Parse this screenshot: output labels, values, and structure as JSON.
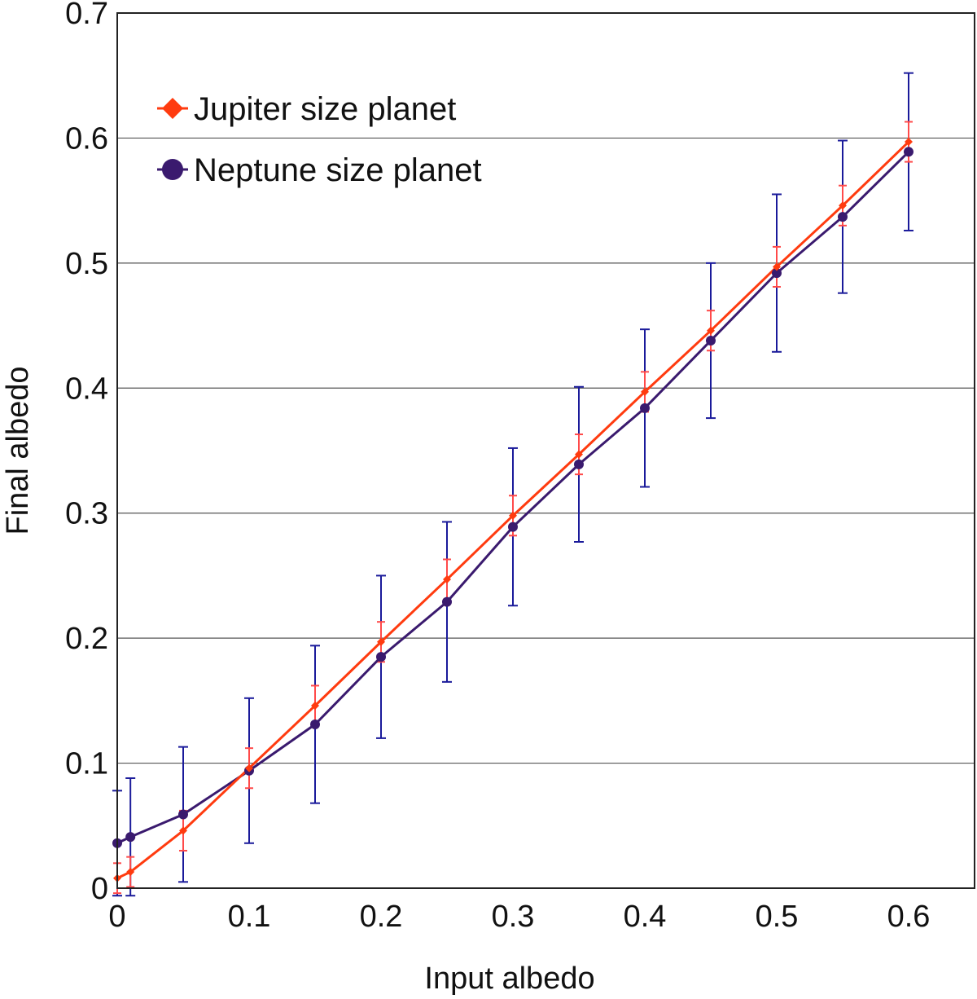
{
  "chart_data": {
    "type": "line",
    "xlabel": "Input albedo",
    "ylabel": "Final albedo",
    "xlim": [
      0,
      0.65
    ],
    "ylim": [
      0,
      0.7
    ],
    "xticks": [
      0,
      0.1,
      0.2,
      0.3,
      0.4,
      0.5,
      0.6
    ],
    "xtick_labels": [
      "0",
      "0.1",
      "0.2",
      "0.3",
      "0.4",
      "0.5",
      "0.6"
    ],
    "yticks": [
      0,
      0.1,
      0.2,
      0.3,
      0.4,
      0.5,
      0.6,
      0.7
    ],
    "ytick_labels": [
      "0",
      "0.1",
      "0.2",
      "0.3",
      "0.4",
      "0.5",
      "0.6",
      "0.7"
    ],
    "grid": "horizontal",
    "legend_position": "top-left",
    "series": [
      {
        "name": "Jupiter size planet",
        "color": "#ff3b0f",
        "errorbar_color": "#ff4a4a",
        "marker": "diamond",
        "x": [
          0,
          0.01,
          0.05,
          0.1,
          0.15,
          0.2,
          0.25,
          0.3,
          0.35,
          0.4,
          0.45,
          0.5,
          0.55,
          0.6
        ],
        "y": [
          0.008,
          0.013,
          0.046,
          0.096,
          0.146,
          0.197,
          0.247,
          0.298,
          0.347,
          0.397,
          0.446,
          0.497,
          0.546,
          0.597
        ],
        "err": [
          0.012,
          0.012,
          0.016,
          0.016,
          0.016,
          0.016,
          0.016,
          0.016,
          0.016,
          0.016,
          0.016,
          0.016,
          0.016,
          0.016
        ]
      },
      {
        "name": "Neptune size planet",
        "color": "#3a1a6e",
        "errorbar_color": "#1a1a9a",
        "marker": "circle",
        "x": [
          0,
          0.01,
          0.05,
          0.1,
          0.15,
          0.2,
          0.25,
          0.3,
          0.35,
          0.4,
          0.45,
          0.5,
          0.55,
          0.6
        ],
        "y": [
          0.036,
          0.041,
          0.059,
          0.094,
          0.131,
          0.185,
          0.229,
          0.289,
          0.339,
          0.384,
          0.438,
          0.492,
          0.537,
          0.589
        ],
        "err": [
          0.042,
          0.047,
          0.054,
          0.058,
          0.063,
          0.065,
          0.064,
          0.063,
          0.062,
          0.063,
          0.062,
          0.063,
          0.061,
          0.063
        ]
      }
    ]
  }
}
